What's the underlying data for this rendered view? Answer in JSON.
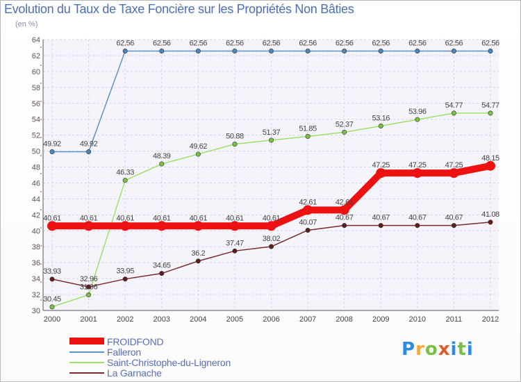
{
  "title": "Evolution du Taux de Taxe Foncière sur les Propriétés Non Bâties",
  "unit_label": "(en %)",
  "logo": {
    "letters": [
      "P",
      "r",
      "o",
      "x",
      "i",
      "t",
      "i"
    ]
  },
  "chart_data": {
    "type": "line",
    "title": "Evolution du Taux de Taxe Foncière sur les Propriétés Non Bâties",
    "ylabel": "(en %)",
    "xlabel": "",
    "ylim": [
      30,
      64
    ],
    "y_ticks": [
      "30",
      "32",
      "34",
      "36",
      "38",
      "40",
      "42",
      "44",
      "46",
      "48",
      "50",
      "52",
      "54",
      "56",
      "58",
      "60",
      "62",
      "64"
    ],
    "x": [
      "2000",
      "2001",
      "2002",
      "2003",
      "2004",
      "2005",
      "2006",
      "2007",
      "2008",
      "2009",
      "2010",
      "2011",
      "2012"
    ],
    "grid": true,
    "legend_position": "bottom-left",
    "series": [
      {
        "name": "Falleron",
        "color": "#5a94c8",
        "dot_color": "#4a86c0",
        "values": [
          49.92,
          49.92,
          62.56,
          62.56,
          62.56,
          62.56,
          62.56,
          62.56,
          62.56,
          62.56,
          62.56,
          62.56,
          62.56
        ],
        "labels": [
          "49.92",
          "49.92",
          "62.56",
          "62.56",
          "62.56",
          "62.56",
          "62.56",
          "62.56",
          "62.56",
          "62.56",
          "62.56",
          "62.56",
          "62.56"
        ]
      },
      {
        "name": "Saint-Christophe-du-Ligneron",
        "color": "#9ee06a",
        "dot_color": "#7ac143",
        "values": [
          30.45,
          31.96,
          46.33,
          48.39,
          49.62,
          50.88,
          51.37,
          51.85,
          52.37,
          53.16,
          53.96,
          54.77,
          54.77
        ],
        "labels": [
          "30.45",
          "31.96",
          "46.33",
          "48.39",
          "49.62",
          "50.88",
          "51.37",
          "51.85",
          "52.37",
          "53.16",
          "53.96",
          "54.77",
          "54.77"
        ]
      },
      {
        "name": "La Garnache",
        "color": "#7a2a2a",
        "dot_color": "#5e1e1e",
        "values": [
          33.93,
          32.96,
          33.95,
          34.65,
          36.2,
          37.47,
          38.02,
          40.07,
          40.67,
          40.67,
          40.67,
          40.67,
          41.08
        ],
        "labels": [
          "33.93",
          "32.96",
          "33.95",
          "34.65",
          "36.2",
          "37.47",
          "38.02",
          "40.07",
          "40.67",
          "40.67",
          "40.67",
          "40.67",
          "41.08"
        ]
      },
      {
        "name": "FROIDFOND",
        "color": "#ee1111",
        "dot_color": "#ee1111",
        "values": [
          40.61,
          40.61,
          40.61,
          40.61,
          40.61,
          40.61,
          40.61,
          42.61,
          42.61,
          47.25,
          47.25,
          47.25,
          48.15
        ],
        "labels": [
          "40.61",
          "40.61",
          "40.61",
          "40.61",
          "40.61",
          "40.61",
          "40.61",
          "42.61",
          "42.61",
          "47.25",
          "47.25",
          "47.25",
          "48.15"
        ]
      }
    ],
    "legend_order": [
      "FROIDFOND",
      "Falleron",
      "Saint-Christophe-du-Ligneron",
      "La Garnache"
    ]
  }
}
